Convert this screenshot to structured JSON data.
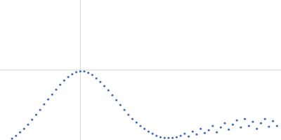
{
  "chart_data": {
    "type": "scatter",
    "color": "#3b67b8",
    "marker": "circle",
    "grid": true,
    "tick_labels": false,
    "xlim": [
      0,
      3.5
    ],
    "ylim": [
      0,
      2
    ],
    "xticks": [
      1
    ],
    "yticks": [
      1
    ],
    "x": [
      0.15,
      0.2,
      0.25,
      0.3,
      0.35,
      0.4,
      0.45,
      0.5,
      0.55,
      0.6,
      0.65,
      0.7,
      0.75,
      0.8,
      0.85,
      0.9,
      0.95,
      1.0,
      1.05,
      1.1,
      1.15,
      1.2,
      1.25,
      1.3,
      1.35,
      1.4,
      1.45,
      1.5,
      1.55,
      1.6,
      1.65,
      1.7,
      1.75,
      1.8,
      1.85,
      1.9,
      1.95,
      2.0,
      2.05,
      2.1,
      2.15,
      2.2,
      2.25,
      2.3,
      2.35,
      2.4,
      2.45,
      2.5,
      2.55,
      2.6,
      2.65,
      2.7,
      2.75,
      2.8,
      2.85,
      2.9,
      2.95,
      3.0,
      3.05,
      3.1,
      3.15,
      3.2,
      3.25,
      3.3,
      3.35,
      3.4,
      3.45
    ],
    "values": [
      0.02,
      0.06,
      0.11,
      0.16,
      0.22,
      0.29,
      0.36,
      0.43,
      0.51,
      0.58,
      0.65,
      0.72,
      0.79,
      0.85,
      0.9,
      0.94,
      0.97,
      0.98,
      0.98,
      0.96,
      0.93,
      0.88,
      0.83,
      0.77,
      0.71,
      0.64,
      0.57,
      0.5,
      0.43,
      0.36,
      0.3,
      0.25,
      0.2,
      0.16,
      0.12,
      0.09,
      0.06,
      0.04,
      0.03,
      0.03,
      0.03,
      0.04,
      0.06,
      0.09,
      0.05,
      0.12,
      0.08,
      0.16,
      0.1,
      0.14,
      0.2,
      0.11,
      0.18,
      0.24,
      0.15,
      0.22,
      0.28,
      0.18,
      0.3,
      0.2,
      0.26,
      0.16,
      0.24,
      0.3,
      0.19,
      0.27,
      0.2
    ]
  }
}
